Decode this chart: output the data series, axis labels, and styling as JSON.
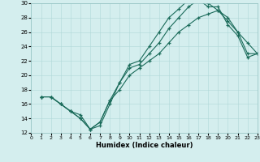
{
  "xlabel": "Humidex (Indice chaleur)",
  "xlim": [
    0,
    23
  ],
  "ylim": [
    12,
    30
  ],
  "xticks": [
    0,
    1,
    2,
    3,
    4,
    5,
    6,
    7,
    8,
    9,
    10,
    11,
    12,
    13,
    14,
    15,
    16,
    17,
    18,
    19,
    20,
    21,
    22,
    23
  ],
  "yticks": [
    12,
    14,
    16,
    18,
    20,
    22,
    24,
    26,
    28,
    30
  ],
  "bg_color": "#d4eeee",
  "line_color": "#1a6b5a",
  "line1_x": [
    1,
    2,
    3,
    4,
    5,
    6,
    7,
    8,
    9,
    10,
    11,
    12,
    13,
    14,
    15,
    16,
    17,
    18,
    19,
    20,
    21,
    22,
    23
  ],
  "line1_y": [
    17,
    17,
    16,
    15,
    14,
    12.5,
    13.5,
    16.5,
    19,
    21.5,
    22,
    24,
    26,
    28,
    29.2,
    30.5,
    30.5,
    30,
    29,
    28,
    26,
    24.5,
    23
  ],
  "line2_x": [
    1,
    2,
    3,
    4,
    5,
    6,
    7,
    8,
    9,
    10,
    11,
    12,
    13,
    14,
    15,
    16,
    17,
    18,
    19,
    20,
    21,
    22,
    23
  ],
  "line2_y": [
    17,
    17,
    16,
    15,
    14.5,
    12.5,
    13,
    16,
    19,
    21,
    21.5,
    23,
    24.5,
    26.5,
    28,
    29.5,
    30.5,
    29.5,
    29.5,
    27,
    25.5,
    22.5,
    23
  ],
  "line3_x": [
    1,
    2,
    3,
    4,
    5,
    6,
    7,
    8,
    9,
    10,
    11,
    12,
    13,
    14,
    15,
    16,
    17,
    18,
    19,
    20,
    21,
    22,
    23
  ],
  "line3_y": [
    17,
    17,
    16,
    15,
    14,
    12.5,
    13.5,
    16.5,
    18,
    20,
    21,
    22,
    23,
    24.5,
    26,
    27,
    28,
    28.5,
    29,
    27.5,
    26,
    23,
    23
  ]
}
